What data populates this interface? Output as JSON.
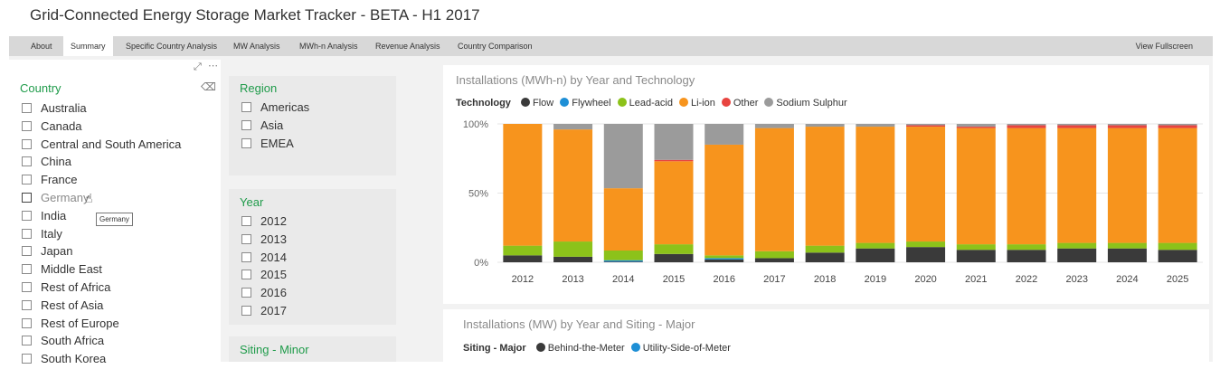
{
  "app": {
    "title": "Grid-Connected Energy Storage Market Tracker - BETA - H1 2017"
  },
  "tabs": [
    {
      "label": "About",
      "active": false
    },
    {
      "label": "Summary",
      "active": true
    },
    {
      "label": "Specific Country Analysis",
      "active": false
    },
    {
      "label": "MW Analysis",
      "active": false
    },
    {
      "label": "MWh-n Analysis",
      "active": false
    },
    {
      "label": "Revenue Analysis",
      "active": false
    },
    {
      "label": "Country Comparison",
      "active": false
    }
  ],
  "view_fullscreen": "View Fullscreen",
  "country_slicer": {
    "title": "Country",
    "items": [
      "Australia",
      "Canada",
      "Central and South America",
      "China",
      "France",
      "Germany",
      "India",
      "Italy",
      "Japan",
      "Middle East",
      "Rest of Africa",
      "Rest of Asia",
      "Rest of Europe",
      "South Africa",
      "South Korea"
    ],
    "hovered": "Germany",
    "tooltip": "Germany"
  },
  "region_slicer": {
    "title": "Region",
    "items": [
      "Americas",
      "Asia",
      "EMEA"
    ]
  },
  "year_slicer": {
    "title": "Year",
    "items": [
      "2012",
      "2013",
      "2014",
      "2015",
      "2016",
      "2017"
    ]
  },
  "siting_minor_slicer": {
    "title": "Siting - Minor"
  },
  "colors": {
    "accent_green": "#1f9b4a",
    "flow": "#3a3a3a",
    "flywheel": "#1e8fd6",
    "lead_acid": "#8cc21a",
    "li_ion": "#f7941d",
    "other": "#e8443f",
    "sodium_sulphur": "#9b9b9b"
  },
  "chart_data": [
    {
      "type": "bar",
      "stacked": true,
      "percent": true,
      "title": "Installations (MWh-n) by Year and Technology",
      "legend_title": "Technology",
      "legend_position": "top-left",
      "categories": [
        "2012",
        "2013",
        "2014",
        "2015",
        "2016",
        "2017",
        "2018",
        "2019",
        "2020",
        "2021",
        "2022",
        "2023",
        "2024",
        "2025"
      ],
      "y_ticks": [
        "0%",
        "50%",
        "100%"
      ],
      "ylim": [
        0,
        100
      ],
      "grid": true,
      "series": [
        {
          "name": "Flow",
          "color": "#3a3a3a",
          "values": [
            5,
            4,
            0.5,
            6,
            2,
            3,
            7,
            10,
            11,
            9,
            9,
            10,
            10,
            9
          ]
        },
        {
          "name": "Flywheel",
          "color": "#1e8fd6",
          "values": [
            0,
            0,
            1,
            0,
            1,
            0,
            0,
            0,
            0,
            0,
            0,
            0,
            0,
            0
          ]
        },
        {
          "name": "Lead-acid",
          "color": "#8cc21a",
          "values": [
            7,
            11,
            7,
            7,
            2,
            5,
            5,
            4,
            4,
            4,
            4,
            4,
            4,
            5
          ]
        },
        {
          "name": "Li-ion",
          "color": "#f7941d",
          "values": [
            88,
            81,
            45,
            60,
            80,
            89,
            86,
            84,
            83,
            84,
            84,
            83,
            83,
            83
          ]
        },
        {
          "name": "Other",
          "color": "#e8443f",
          "values": [
            0,
            0,
            0,
            1,
            0,
            0,
            0,
            0,
            1,
            1,
            2,
            2,
            2,
            2
          ]
        },
        {
          "name": "Sodium Sulphur",
          "color": "#9b9b9b",
          "values": [
            0,
            4,
            46.5,
            26,
            15,
            3,
            2,
            2,
            1,
            2,
            1,
            1,
            1,
            1
          ]
        }
      ]
    },
    {
      "type": "bar",
      "title": "Installations (MW) by Year and Siting - Major",
      "legend_title": "Siting - Major",
      "legend_position": "top-left",
      "series": [
        {
          "name": "Behind-the-Meter",
          "color": "#3a3a3a"
        },
        {
          "name": "Utility-Side-of-Meter",
          "color": "#1e8fd6"
        }
      ]
    }
  ]
}
